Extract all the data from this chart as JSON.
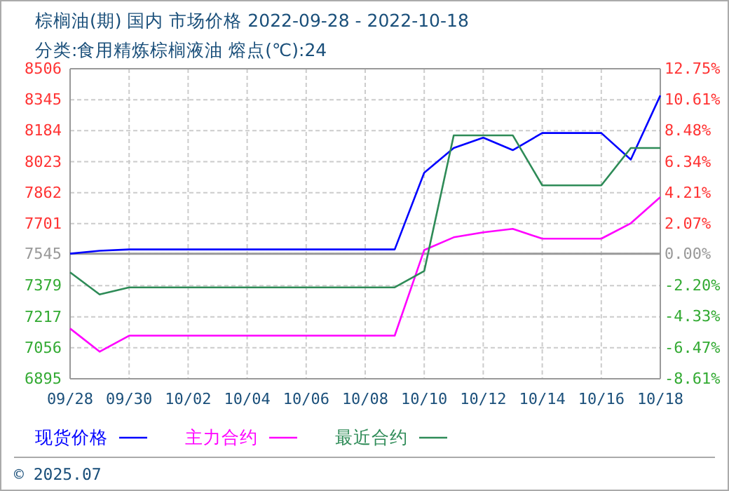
{
  "chart_data": {
    "type": "line",
    "title": "棕榈油(期) 国内 市场价格 2022-09-28 - 2022-10-18",
    "subtitle": "分类:食用精炼棕榈液油 熔点(℃):24",
    "categories": [
      "09/28",
      null,
      "09/30",
      null,
      "10/02",
      null,
      "10/04",
      null,
      "10/06",
      null,
      "10/08",
      null,
      "10/10",
      null,
      "10/12",
      null,
      "10/14",
      null,
      "10/16",
      null,
      "10/18"
    ],
    "series": [
      {
        "name": "现货价格",
        "color": "#0000ff",
        "values": [
          7545,
          7560,
          7567,
          7567,
          7567,
          7567,
          7567,
          7567,
          7567,
          7567,
          7567,
          7567,
          7966,
          8094,
          8148,
          8083,
          8172,
          8172,
          8172,
          8034,
          8367
        ]
      },
      {
        "name": "主力合约",
        "color": "#ff00ff",
        "values": [
          7156,
          7036,
          7119,
          7119,
          7119,
          7119,
          7119,
          7119,
          7119,
          7119,
          7119,
          7119,
          7564,
          7630,
          7656,
          7674,
          7623,
          7623,
          7623,
          7703,
          7839
        ]
      },
      {
        "name": "最近合约",
        "color": "#2e8b57",
        "values": [
          7448,
          7333,
          7370,
          7370,
          7370,
          7370,
          7370,
          7370,
          7370,
          7370,
          7370,
          7370,
          7455,
          8160,
          8160,
          8160,
          7900,
          7900,
          7900,
          8094,
          8094
        ]
      }
    ],
    "ylim": [
      6895,
      8506
    ],
    "yticks": [
      6895,
      7056,
      7217,
      7379,
      7545,
      7701,
      7862,
      8023,
      8184,
      8345,
      8506
    ],
    "y2lim": [
      -8.61,
      12.75
    ],
    "y2ticks": [
      {
        "value": -8.61,
        "label": "-8.61%"
      },
      {
        "value": -6.47,
        "label": "-6.47%"
      },
      {
        "value": -4.33,
        "label": "-4.33%"
      },
      {
        "value": -2.2,
        "label": "-2.20%"
      },
      {
        "value": 0,
        "label": "0.00%"
      },
      {
        "value": 2.07,
        "label": "2.07%"
      },
      {
        "value": 4.21,
        "label": "4.21%"
      },
      {
        "value": 6.34,
        "label": "6.34%"
      },
      {
        "value": 8.48,
        "label": "8.48%"
      },
      {
        "value": 10.61,
        "label": "10.61%"
      },
      {
        "value": 12.75,
        "label": "12.75%"
      }
    ],
    "ref_lines": [
      {
        "axis": "y",
        "value": 7545,
        "color": "#999999"
      }
    ],
    "grid": true,
    "legend": "bottom left",
    "annotations": [
      "© 2025.07"
    ]
  }
}
